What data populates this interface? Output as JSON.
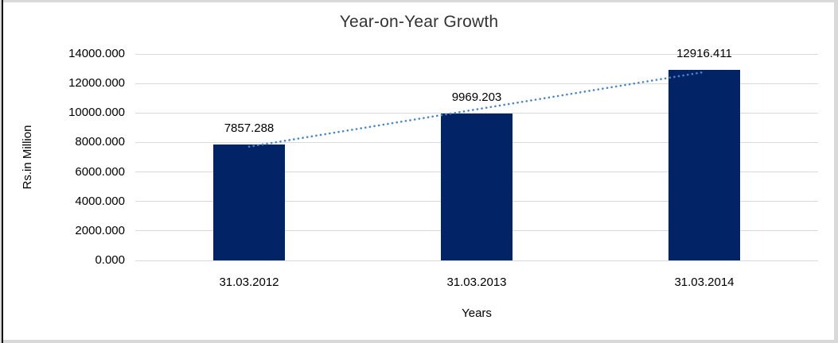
{
  "chart_data": {
    "type": "bar",
    "title": "Year-on-Year Growth",
    "xlabel": "Years",
    "ylabel": "Rs.in Million",
    "categories": [
      "31.03.2012",
      "31.03.2013",
      "31.03.2014"
    ],
    "values": [
      7857.288,
      9969.203,
      12916.411
    ],
    "data_labels": [
      "7857.288",
      "9969.203",
      "12916.411"
    ],
    "ylim": [
      0,
      14000
    ],
    "ytick_step": 2000,
    "ytick_labels": [
      "0.000",
      "2000.000",
      "4000.000",
      "6000.000",
      "8000.000",
      "10000.000",
      "12000.000",
      "14000.000"
    ],
    "grid": "horizontal",
    "legend": "none",
    "bar_color": "#022366",
    "gridline_color": "#d9d9d9",
    "trendline": {
      "type": "linear",
      "style": "dotted",
      "color": "#4a86c8"
    }
  },
  "frame": {
    "border_color": "#d9d9d9",
    "left_line_color": "#0a0a0a"
  }
}
